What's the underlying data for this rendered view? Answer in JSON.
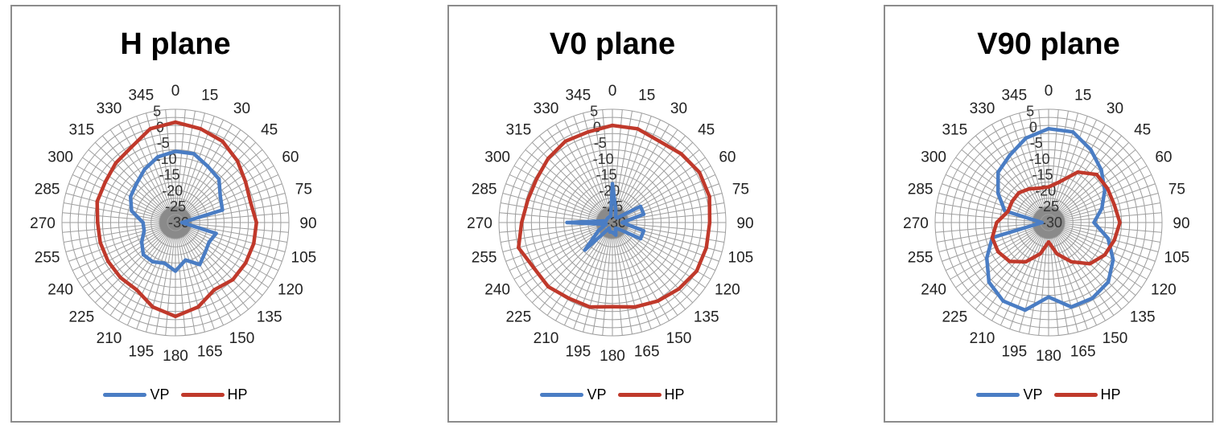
{
  "colors": {
    "vp": "#4a7dc4",
    "hp": "#c0392b",
    "grid": "#9e9e9e"
  },
  "chart_data": [
    {
      "type": "polar",
      "title": "H plane",
      "angular_ticks": [
        0,
        15,
        30,
        45,
        60,
        75,
        90,
        105,
        120,
        135,
        150,
        165,
        180,
        195,
        210,
        225,
        240,
        255,
        270,
        285,
        300,
        315,
        330,
        345
      ],
      "radial_ticks": [
        5,
        0,
        -5,
        -10,
        -15,
        -20,
        -25,
        -30
      ],
      "rlim": [
        -30,
        5
      ],
      "grid": true,
      "legend_position": "bottom",
      "series": [
        {
          "name": "VP",
          "color_key": "vp",
          "angles": [
            0,
            15,
            30,
            45,
            60,
            75,
            90,
            105,
            120,
            135,
            150,
            165,
            180,
            195,
            210,
            225,
            240,
            255,
            270,
            285,
            300,
            315,
            330,
            345
          ],
          "values": [
            -8,
            -8,
            -10,
            -11,
            -14,
            -15,
            -28,
            -17,
            -18,
            -17,
            -15,
            -18,
            -15,
            -17,
            -16,
            -16,
            -18,
            -20,
            -20,
            -16,
            -14,
            -13,
            -11,
            -9
          ]
        },
        {
          "name": "HP",
          "color_key": "hp",
          "angles": [
            0,
            15,
            30,
            45,
            60,
            75,
            90,
            105,
            120,
            135,
            150,
            165,
            180,
            195,
            210,
            225,
            240,
            255,
            270,
            285,
            300,
            315,
            330,
            345
          ],
          "values": [
            1,
            0,
            -1,
            -3,
            -5,
            -6,
            -5,
            -5,
            -5,
            -5,
            -6,
            -3,
            -1,
            -3,
            -6,
            -6,
            -6,
            -6,
            -6,
            -5,
            -5,
            -4,
            -3,
            0
          ]
        }
      ]
    },
    {
      "type": "polar",
      "title": "V0 plane",
      "angular_ticks": [
        0,
        15,
        30,
        45,
        60,
        75,
        90,
        105,
        120,
        135,
        150,
        165,
        180,
        195,
        210,
        225,
        240,
        255,
        270,
        285,
        300,
        315,
        330,
        345
      ],
      "radial_ticks": [
        5,
        0,
        -5,
        -10,
        -15,
        -20,
        -25,
        -30
      ],
      "rlim": [
        -30,
        5
      ],
      "grid": true,
      "legend_position": "bottom",
      "series": [
        {
          "name": "VP",
          "color_key": "vp",
          "angles": [
            0,
            15,
            30,
            45,
            60,
            75,
            90,
            105,
            120,
            135,
            150,
            165,
            180,
            195,
            210,
            225,
            240,
            255,
            270,
            285,
            300,
            315,
            330,
            345
          ],
          "values": [
            -18,
            -26,
            -28,
            -28,
            -20,
            -20,
            -27,
            -20,
            -20,
            -27,
            -28,
            -26,
            -27,
            -27,
            -28,
            -18,
            -25,
            -28,
            -16,
            -28,
            -28,
            -28,
            -28,
            -28
          ]
        },
        {
          "name": "HP",
          "color_key": "hp",
          "angles": [
            0,
            15,
            30,
            45,
            60,
            75,
            90,
            105,
            120,
            135,
            150,
            165,
            180,
            195,
            210,
            225,
            240,
            255,
            270,
            285,
            300,
            315,
            330,
            345
          ],
          "values": [
            0,
            0,
            -1,
            0,
            1,
            1,
            0,
            0,
            0,
            -1,
            -2,
            -3,
            -4,
            -3,
            -3,
            -2,
            -2,
            0,
            -2,
            -3,
            -3,
            -2,
            -1,
            -1
          ]
        }
      ]
    },
    {
      "type": "polar",
      "title": "V90 plane",
      "angular_ticks": [
        0,
        15,
        30,
        45,
        60,
        75,
        90,
        105,
        120,
        135,
        150,
        165,
        180,
        195,
        210,
        225,
        240,
        255,
        270,
        285,
        300,
        315,
        330,
        345
      ],
      "radial_ticks": [
        5,
        0,
        -5,
        -10,
        -15,
        -20,
        -25,
        -30
      ],
      "rlim": [
        -30,
        5
      ],
      "grid": true,
      "legend_position": "bottom",
      "series": [
        {
          "name": "VP",
          "color_key": "vp",
          "angles": [
            0,
            15,
            30,
            45,
            60,
            75,
            90,
            105,
            120,
            135,
            150,
            165,
            180,
            195,
            210,
            225,
            240,
            255,
            270,
            285,
            300,
            315,
            330,
            345
          ],
          "values": [
            -1,
            -1,
            -4,
            -7,
            -10,
            -13,
            -16,
            -11,
            -7,
            -4,
            -3,
            -3,
            -7,
            -2,
            -2,
            -4,
            -8,
            -12,
            -28,
            -16,
            -12,
            -8,
            -6,
            -3
          ]
        },
        {
          "name": "HP",
          "color_key": "hp",
          "angles": [
            0,
            15,
            30,
            45,
            60,
            75,
            90,
            105,
            120,
            135,
            150,
            165,
            180,
            195,
            210,
            225,
            240,
            255,
            270,
            285,
            300,
            315,
            330,
            345
          ],
          "values": [
            -19,
            -17,
            -12,
            -9,
            -9,
            -9,
            -8,
            -9,
            -10,
            -12,
            -16,
            -20,
            -24,
            -20,
            -16,
            -13,
            -12,
            -12,
            -14,
            -17,
            -17,
            -17,
            -18,
            -19
          ]
        }
      ]
    }
  ]
}
